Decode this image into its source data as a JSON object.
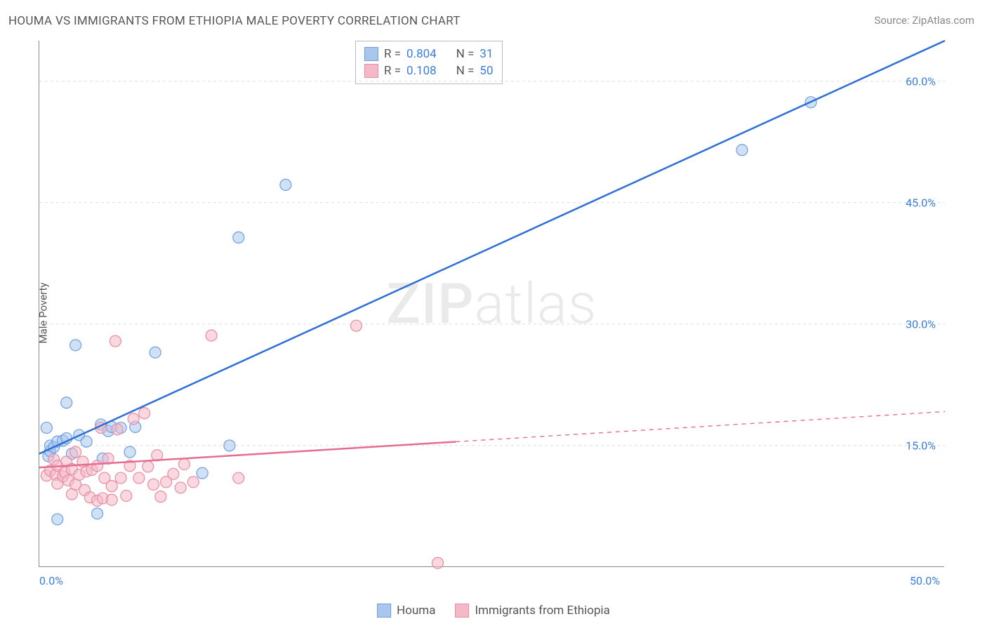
{
  "title": "HOUMA VS IMMIGRANTS FROM ETHIOPIA MALE POVERTY CORRELATION CHART",
  "source": "Source: ZipAtlas.com",
  "y_axis_label": "Male Poverty",
  "watermark": {
    "part1": "ZIP",
    "part2": "atlas"
  },
  "chart": {
    "type": "scatter",
    "xlim": [
      0,
      50
    ],
    "ylim": [
      0,
      65
    ],
    "x_ticks": [
      {
        "value": 0,
        "label": "0.0%"
      },
      {
        "value": 50,
        "label": "50.0%"
      }
    ],
    "y_ticks": [
      {
        "value": 15,
        "label": "15.0%"
      },
      {
        "value": 30,
        "label": "30.0%"
      },
      {
        "value": 45,
        "label": "45.0%"
      },
      {
        "value": 60,
        "label": "60.0%"
      }
    ],
    "grid_color": "#dddddd",
    "background_color": "#ffffff",
    "axis_color": "#888888",
    "marker_radius": 8,
    "marker_opacity": 0.55,
    "line_width": 2.5,
    "series": [
      {
        "name": "Houma",
        "color_fill": "#a9c6ec",
        "color_stroke": "#6d9fe0",
        "line_color": "#2e6fd6",
        "R": "0.804",
        "N": "31",
        "trend": {
          "x1": 0,
          "y1": 14,
          "x2": 50,
          "y2": 65,
          "dashed_from": null
        },
        "points": [
          [
            0.4,
            17.2
          ],
          [
            0.5,
            13.7
          ],
          [
            0.6,
            14.3
          ],
          [
            0.6,
            15.0
          ],
          [
            0.8,
            14.8
          ],
          [
            1.0,
            15.5
          ],
          [
            1.0,
            5.9
          ],
          [
            1.3,
            15.6
          ],
          [
            1.5,
            15.9
          ],
          [
            1.5,
            20.3
          ],
          [
            1.8,
            14.0
          ],
          [
            2.0,
            27.4
          ],
          [
            2.2,
            16.3
          ],
          [
            2.6,
            15.5
          ],
          [
            3.2,
            6.6
          ],
          [
            3.4,
            17.6
          ],
          [
            3.5,
            13.4
          ],
          [
            3.8,
            16.8
          ],
          [
            4.0,
            17.3
          ],
          [
            4.5,
            17.2
          ],
          [
            5.0,
            14.2
          ],
          [
            5.3,
            17.3
          ],
          [
            6.4,
            26.5
          ],
          [
            9.0,
            11.6
          ],
          [
            10.5,
            15.0
          ],
          [
            11.0,
            40.7
          ],
          [
            13.6,
            47.2
          ],
          [
            38.8,
            51.5
          ],
          [
            42.6,
            57.4
          ]
        ]
      },
      {
        "name": "Immigrants from Ethiopia",
        "color_fill": "#f4b8c6",
        "color_stroke": "#ea8ba3",
        "line_color": "#e76c8e",
        "R": "0.108",
        "N": "50",
        "trend": {
          "x1": 0,
          "y1": 12.3,
          "x2": 50,
          "y2": 19.2,
          "dashed_from": 23
        },
        "points": [
          [
            0.4,
            11.3
          ],
          [
            0.6,
            11.9
          ],
          [
            0.8,
            13.3
          ],
          [
            0.9,
            11.4
          ],
          [
            1.0,
            10.3
          ],
          [
            1.0,
            12.5
          ],
          [
            1.3,
            11.2
          ],
          [
            1.4,
            11.7
          ],
          [
            1.5,
            13.0
          ],
          [
            1.6,
            10.7
          ],
          [
            1.8,
            12.1
          ],
          [
            1.8,
            9.0
          ],
          [
            2.0,
            14.2
          ],
          [
            2.0,
            10.2
          ],
          [
            2.2,
            11.4
          ],
          [
            2.4,
            13.0
          ],
          [
            2.5,
            9.5
          ],
          [
            2.6,
            11.8
          ],
          [
            2.8,
            8.6
          ],
          [
            2.9,
            12.0
          ],
          [
            3.2,
            8.2
          ],
          [
            3.2,
            12.5
          ],
          [
            3.4,
            17.2
          ],
          [
            3.5,
            8.5
          ],
          [
            3.6,
            11.0
          ],
          [
            3.8,
            13.4
          ],
          [
            4.0,
            10.0
          ],
          [
            4.0,
            8.3
          ],
          [
            4.2,
            27.9
          ],
          [
            4.3,
            17.0
          ],
          [
            4.5,
            11.0
          ],
          [
            4.8,
            8.8
          ],
          [
            5.0,
            12.5
          ],
          [
            5.2,
            18.3
          ],
          [
            5.5,
            11.0
          ],
          [
            5.8,
            19.0
          ],
          [
            6.0,
            12.4
          ],
          [
            6.3,
            10.2
          ],
          [
            6.5,
            13.8
          ],
          [
            6.7,
            8.7
          ],
          [
            7.0,
            10.5
          ],
          [
            7.4,
            11.5
          ],
          [
            7.8,
            9.8
          ],
          [
            8.0,
            12.7
          ],
          [
            8.5,
            10.5
          ],
          [
            9.5,
            28.6
          ],
          [
            11.0,
            11.0
          ],
          [
            17.5,
            29.8
          ],
          [
            22.0,
            0.5
          ]
        ]
      }
    ]
  },
  "legend_bottom": {
    "series1_label": "Houma",
    "series2_label": "Immigrants from Ethiopia"
  },
  "legend_top": {
    "r_label": "R =",
    "n_label": "N ="
  }
}
